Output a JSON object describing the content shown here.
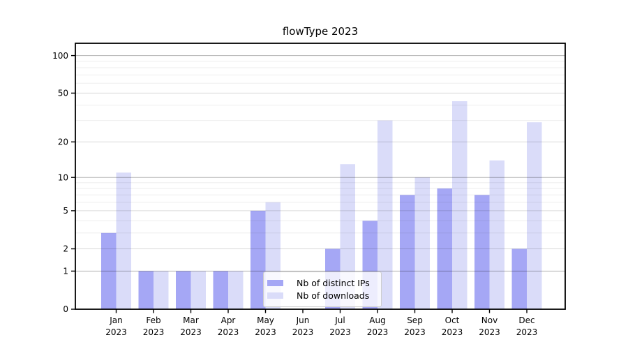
{
  "chart_data": {
    "type": "bar",
    "title": "flowType 2023",
    "categories": [
      "Jan",
      "Feb",
      "Mar",
      "Apr",
      "May",
      "Jun",
      "Jul",
      "Aug",
      "Sep",
      "Oct",
      "Nov",
      "Dec"
    ],
    "x_tick_year": "2023",
    "series": [
      {
        "name": "Nb of distinct IPs",
        "color": "#a5a7f5",
        "values": [
          3,
          1,
          1,
          1,
          5,
          0,
          2,
          4,
          7,
          8,
          7,
          2
        ]
      },
      {
        "name": "Nb of downloads",
        "color": "#dadcf9",
        "values": [
          11,
          1,
          1,
          1,
          6,
          0,
          13,
          30,
          10,
          43,
          14,
          29
        ]
      }
    ],
    "xlabel": "",
    "ylabel": "",
    "yscale": "symlog",
    "y_ticks": [
      0,
      1,
      2,
      5,
      10,
      20,
      50,
      100
    ],
    "ylim": [
      0,
      124
    ],
    "grid": true,
    "grid_minor": true,
    "legend_position": "lower center",
    "colors": {
      "grid_major": "rgba(0,0,0,0.30)",
      "grid_mid": "rgba(0,0,0,0.15)",
      "grid_minor": "rgba(0,0,0,0.07)",
      "axis": "#000000",
      "background": "#ffffff"
    }
  }
}
